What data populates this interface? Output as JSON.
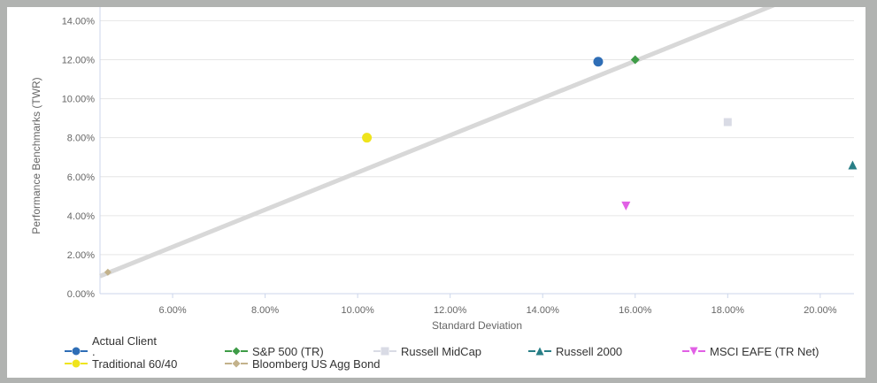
{
  "window": {
    "frame_color": "#b1b3b1",
    "background": "#ffffff"
  },
  "chart_data": {
    "type": "scatter",
    "title": "",
    "xlabel": "Standard Deviation",
    "ylabel": "Performance Benchmarks (TWR)",
    "xlim": [
      4.43,
      20.73
    ],
    "ylim": [
      0,
      14.7
    ],
    "grid": "horizontal-only",
    "legend_position": "bottom-left",
    "grid_color": "#e6e6e6",
    "axis_line_color": "#ccd6eb",
    "tick_label_color": "#666666",
    "axis_title_color": "#666666",
    "legend_text_color": "#333333",
    "x_ticks": [
      {
        "value": 6,
        "label": "6.00%"
      },
      {
        "value": 8,
        "label": "8.00%"
      },
      {
        "value": 10,
        "label": "10.00%"
      },
      {
        "value": 12,
        "label": "12.00%"
      },
      {
        "value": 14,
        "label": "14.00%"
      },
      {
        "value": 16,
        "label": "16.00%"
      },
      {
        "value": 18,
        "label": "18.00%"
      },
      {
        "value": 20,
        "label": "20.00%"
      }
    ],
    "y_ticks": [
      {
        "value": 0,
        "label": "0.00%"
      },
      {
        "value": 2,
        "label": "2.00%"
      },
      {
        "value": 4,
        "label": "4.00%"
      },
      {
        "value": 6,
        "label": "6.00%"
      },
      {
        "value": 8,
        "label": "8.00%"
      },
      {
        "value": 10,
        "label": "10.00%"
      },
      {
        "value": 12,
        "label": "12.00%"
      },
      {
        "value": 14,
        "label": "14.00%"
      }
    ],
    "series": [
      {
        "name": "Actual Client",
        "marker": "circle",
        "color": "#2f6eb6",
        "x": 15.2,
        "y": 11.9,
        "size": 11
      },
      {
        "name": "S&P 500 (TR)",
        "marker": "diamond",
        "color": "#3e9c47",
        "x": 16.0,
        "y": 12.0,
        "size": 10
      },
      {
        "name": "Russell MidCap",
        "marker": "square",
        "color": "#d9dbe5",
        "x": 18.0,
        "y": 8.8,
        "size": 9
      },
      {
        "name": "Russell 2000",
        "marker": "triangle-up",
        "color": "#287e86",
        "x": 20.7,
        "y": 6.6,
        "size": 10
      },
      {
        "name": "MSCI EAFE (TR Net)",
        "marker": "triangle-down",
        "color": "#e160e5",
        "x": 15.8,
        "y": 4.5,
        "size": 10
      },
      {
        "name": "Traditional 60/40",
        "marker": "circle",
        "color": "#efe41c",
        "x": 10.2,
        "y": 8.0,
        "size": 11
      },
      {
        "name": "Bloomberg US Agg Bond",
        "marker": "diamond",
        "color": "#c3b28b",
        "x": 4.6,
        "y": 1.1,
        "size": 8
      }
    ],
    "trend_line": {
      "x1": 4.43,
      "y1": 0.9,
      "x2": 19.05,
      "y2": 14.85,
      "color": "#d8d8d8",
      "width": 5
    }
  },
  "legend": {
    "items": [
      {
        "label": "Actual Client",
        "label2": ".",
        "series": 0,
        "row": 0,
        "col": 0
      },
      {
        "label": "S&P 500 (TR)",
        "series": 1,
        "row": 0,
        "col": 1
      },
      {
        "label": "Russell MidCap",
        "series": 2,
        "row": 0,
        "col": 2
      },
      {
        "label": "Russell 2000",
        "series": 3,
        "row": 0,
        "col": 3
      },
      {
        "label": "MSCI EAFE (TR Net)",
        "series": 4,
        "row": 0,
        "col": 4
      },
      {
        "label": "Traditional 60/40",
        "series": 5,
        "row": 1,
        "col": 0
      },
      {
        "label": "Bloomberg US Agg Bond",
        "series": 6,
        "row": 1,
        "col": 1
      }
    ]
  }
}
